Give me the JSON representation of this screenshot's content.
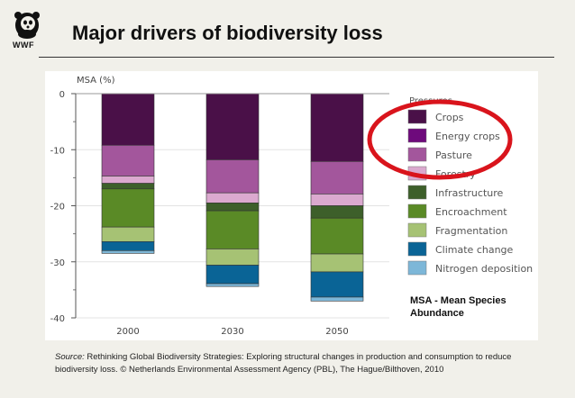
{
  "header": {
    "logo_text": "WWF",
    "title": "Major drivers of biodiversity loss"
  },
  "chart_data": {
    "type": "bar",
    "stacked": true,
    "ylabel": "MSA (%)",
    "xlabel": "",
    "ylim": [
      -40,
      0
    ],
    "yticks": [
      0,
      -10,
      -20,
      -30,
      -40
    ],
    "grid": true,
    "categories": [
      "2000",
      "2030",
      "2050"
    ],
    "legend_title": "Pressures",
    "legend_position": "right",
    "series": [
      {
        "name": "Crops",
        "color": "#4a1048",
        "values": [
          -9.2,
          -11.8,
          -12.1
        ]
      },
      {
        "name": "Energy crops",
        "color": "#6e0a7c",
        "values": [
          0,
          0,
          0
        ]
      },
      {
        "name": "Pasture",
        "color": "#a3569c",
        "values": [
          -5.5,
          -5.9,
          -5.8
        ]
      },
      {
        "name": "Forestry",
        "color": "#dba9cf",
        "values": [
          -1.3,
          -1.8,
          -2.1
        ]
      },
      {
        "name": "Infrastructure",
        "color": "#3d5f2a",
        "values": [
          -1.0,
          -1.4,
          -2.2
        ]
      },
      {
        "name": "Encroachment",
        "color": "#5a8a26",
        "values": [
          -6.8,
          -6.8,
          -6.4
        ]
      },
      {
        "name": "Fragmentation",
        "color": "#a6c274",
        "values": [
          -2.6,
          -2.9,
          -3.2
        ]
      },
      {
        "name": "Climate change",
        "color": "#0a6496",
        "values": [
          -1.6,
          -3.3,
          -4.5
        ]
      },
      {
        "name": "Nitrogen deposition",
        "color": "#7db7d8",
        "values": [
          -0.5,
          -0.5,
          -0.7
        ]
      }
    ],
    "annotation": "red ellipse highlighting Crops, Energy crops, Pasture"
  },
  "msa_note": "MSA - Mean Species Abundance",
  "source": {
    "label": "Source:",
    "text": " Rethinking Global Biodiversity Strategies: Exploring structural changes in production and consumption to reduce biodiversity loss. © Netherlands Environmental Assessment Agency (PBL), The Hague/Bilthoven, 2010"
  },
  "colors": {
    "background": "#f1f0ea",
    "highlight": "#d9141c"
  }
}
